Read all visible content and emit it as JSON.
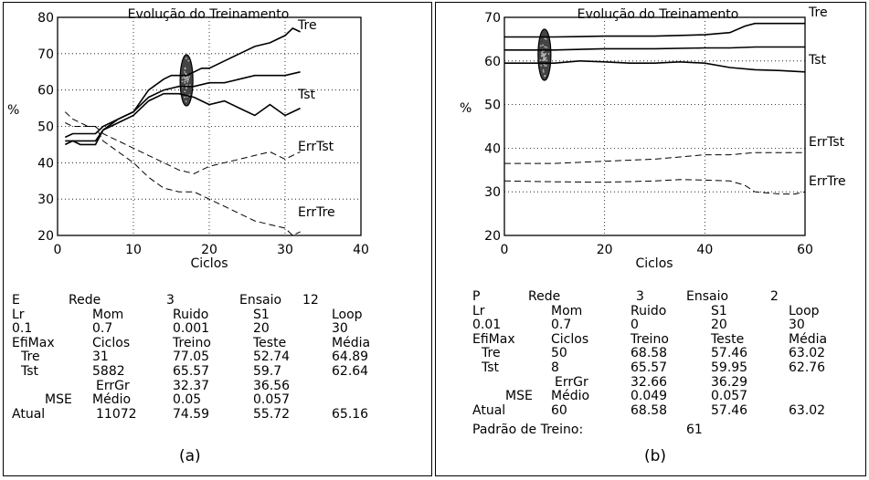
{
  "chart_data": [
    {
      "type": "line",
      "title": "Evolução do Treinamento",
      "xlabel": "Ciclos",
      "ylabel": "%",
      "xlim": [
        0,
        40
      ],
      "ylim": [
        20,
        80
      ],
      "xticks": [
        "0",
        "10",
        "20",
        "30",
        "40"
      ],
      "yticks": [
        "20",
        "30",
        "40",
        "50",
        "60",
        "70",
        "80"
      ],
      "grid": "dotted",
      "highlight_x": 17,
      "series": [
        {
          "name": "Tre",
          "dash": "solid",
          "x": [
            1,
            2,
            3,
            4,
            5,
            6,
            8,
            10,
            12,
            14,
            15,
            17,
            18,
            19,
            20,
            22,
            24,
            26,
            28,
            30,
            31,
            32
          ],
          "y": [
            47,
            48,
            48,
            48,
            48,
            50,
            52,
            54,
            60,
            63,
            64,
            64,
            65,
            66,
            66,
            68,
            70,
            72,
            73,
            75,
            77,
            76
          ]
        },
        {
          "name": "",
          "dash": "solid",
          "x": [
            1,
            2,
            3,
            4,
            5,
            6,
            8,
            10,
            12,
            14,
            16,
            18,
            20,
            22,
            24,
            26,
            28,
            30,
            32
          ],
          "y": [
            46,
            46,
            46,
            46,
            46,
            49,
            52,
            54,
            58,
            60,
            61,
            61,
            62,
            62,
            63,
            64,
            64,
            64,
            65
          ]
        },
        {
          "name": "Tst",
          "dash": "solid",
          "x": [
            1,
            2,
            3,
            4,
            5,
            6,
            8,
            10,
            12,
            14,
            16,
            18,
            20,
            22,
            24,
            26,
            28,
            30,
            31,
            32
          ],
          "y": [
            45,
            46,
            45,
            45,
            45,
            49,
            51,
            53,
            57,
            59,
            59,
            58,
            56,
            57,
            55,
            53,
            56,
            53,
            54,
            55
          ]
        },
        {
          "name": "ErrTst",
          "dash": "dashed",
          "x": [
            1,
            2,
            3,
            4,
            5,
            6,
            8,
            10,
            12,
            14,
            16,
            18,
            20,
            22,
            24,
            26,
            28,
            30,
            32
          ],
          "y": [
            51,
            50,
            50,
            50,
            50,
            48,
            46,
            44,
            42,
            40,
            38,
            37,
            39,
            40,
            41,
            42,
            43,
            41,
            43
          ]
        },
        {
          "name": "ErrTre",
          "dash": "dashed",
          "x": [
            1,
            2,
            3,
            4,
            5,
            6,
            8,
            10,
            12,
            14,
            16,
            18,
            20,
            22,
            24,
            26,
            28,
            30,
            31,
            32
          ],
          "y": [
            54,
            52,
            51,
            50,
            50,
            46,
            43,
            40,
            36,
            33,
            32,
            32,
            30,
            28,
            26,
            24,
            23,
            22,
            20,
            21
          ]
        }
      ]
    },
    {
      "type": "line",
      "title": "Evolução do Treinamento",
      "xlabel": "Ciclos",
      "ylabel": "%",
      "xlim": [
        0,
        60
      ],
      "ylim": [
        20,
        70
      ],
      "xticks": [
        "0",
        "20",
        "40",
        "60"
      ],
      "yticks": [
        "20",
        "30",
        "40",
        "50",
        "60",
        "70"
      ],
      "grid": "dotted",
      "highlight_x": 8,
      "series": [
        {
          "name": "Tre",
          "dash": "solid",
          "x": [
            0,
            10,
            20,
            30,
            40,
            45,
            48,
            50,
            55,
            60
          ],
          "y": [
            65.5,
            65.5,
            65.7,
            65.7,
            66,
            66.5,
            68,
            68.6,
            68.6,
            68.6
          ]
        },
        {
          "name": "Tst",
          "dash": "solid",
          "x": [
            0,
            10,
            20,
            30,
            40,
            45,
            50,
            55,
            60
          ],
          "y": [
            62.5,
            62.5,
            62.8,
            62.8,
            63,
            63,
            63.2,
            63.2,
            63.2
          ]
        },
        {
          "name": "",
          "dash": "solid",
          "x": [
            0,
            10,
            15,
            20,
            25,
            30,
            35,
            40,
            45,
            50,
            55,
            60
          ],
          "y": [
            59.5,
            59.5,
            60,
            59.8,
            59.5,
            59.5,
            59.8,
            59.5,
            58.5,
            58,
            57.8,
            57.5
          ]
        },
        {
          "name": "ErrTst",
          "dash": "dashed",
          "x": [
            0,
            10,
            20,
            30,
            35,
            40,
            45,
            50,
            55,
            60
          ],
          "y": [
            36.5,
            36.5,
            37,
            37.5,
            38,
            38.5,
            38.5,
            39,
            39,
            39
          ]
        },
        {
          "name": "ErrTre",
          "dash": "dashed",
          "x": [
            0,
            10,
            20,
            30,
            35,
            40,
            45,
            48,
            50,
            55,
            58,
            60
          ],
          "y": [
            32.5,
            32.3,
            32.2,
            32.5,
            32.8,
            32.7,
            32.5,
            31.5,
            30,
            29.5,
            29.5,
            30
          ]
        }
      ]
    }
  ],
  "panels": [
    {
      "caption": "(a)",
      "stats": [
        {
          "col": 0,
          "row": 0,
          "text": "E"
        },
        {
          "col": 1,
          "row": 0,
          "text": "Rede"
        },
        {
          "col": 2,
          "row": 0,
          "text": "3"
        },
        {
          "col": 3,
          "row": 0,
          "text": "Ensaio"
        },
        {
          "col": 4,
          "row": 0,
          "text": "12"
        },
        {
          "col": 0,
          "row": 1,
          "text": "Lr"
        },
        {
          "col": 5,
          "row": 1,
          "text": "Mom"
        },
        {
          "col": 6,
          "row": 1,
          "text": "Ruido"
        },
        {
          "col": 7,
          "row": 1,
          "text": "S1"
        },
        {
          "col": 8,
          "row": 1,
          "text": "Loop"
        },
        {
          "col": 0,
          "row": 2,
          "text": "0.1"
        },
        {
          "col": 5,
          "row": 2,
          "text": "0.7"
        },
        {
          "col": 6,
          "row": 2,
          "text": "0.001"
        },
        {
          "col": 7,
          "row": 2,
          "text": "20"
        },
        {
          "col": 8,
          "row": 2,
          "text": "30"
        },
        {
          "col": 0,
          "row": 3,
          "text": "EfiMax"
        },
        {
          "col": 5,
          "row": 3,
          "text": "Ciclos"
        },
        {
          "col": 6,
          "row": 3,
          "text": "Treino"
        },
        {
          "col": 7,
          "row": 3,
          "text": "Teste"
        },
        {
          "col": 8,
          "row": 3,
          "text": "Média"
        },
        {
          "col": 9,
          "row": 4,
          "text": "Tre"
        },
        {
          "col": 5,
          "row": 4,
          "text": "31"
        },
        {
          "col": 6,
          "row": 4,
          "text": "77.05"
        },
        {
          "col": 7,
          "row": 4,
          "text": "52.74"
        },
        {
          "col": 8,
          "row": 4,
          "text": "64.89"
        },
        {
          "col": 10,
          "row": 5,
          "text": "Tst"
        },
        {
          "col": 5,
          "row": 5,
          "text": "5882"
        },
        {
          "col": 6,
          "row": 5,
          "text": "65.57"
        },
        {
          "col": 7,
          "row": 5,
          "text": "59.7"
        },
        {
          "col": 8,
          "row": 5,
          "text": "62.64"
        },
        {
          "col": 11,
          "row": 6,
          "text": "ErrGr"
        },
        {
          "col": 6,
          "row": 6,
          "text": "32.37"
        },
        {
          "col": 7,
          "row": 6,
          "text": "36.56"
        },
        {
          "col": 12,
          "row": 7,
          "text": "MSE"
        },
        {
          "col": 5,
          "row": 7,
          "text": "Médio"
        },
        {
          "col": 6,
          "row": 7,
          "text": "0.05"
        },
        {
          "col": 7,
          "row": 7,
          "text": "0.057"
        },
        {
          "col": 0,
          "row": 8,
          "text": "Atual"
        },
        {
          "col": 13,
          "row": 8,
          "text": "11072"
        },
        {
          "col": 6,
          "row": 8,
          "text": "74.59"
        },
        {
          "col": 7,
          "row": 8,
          "text": "55.72"
        },
        {
          "col": 8,
          "row": 8,
          "text": "65.16"
        }
      ]
    },
    {
      "caption": "(b)",
      "stats": [
        {
          "col": 0,
          "row": 0,
          "text": "P"
        },
        {
          "col": 1,
          "row": 0,
          "text": "Rede"
        },
        {
          "col": 2,
          "row": 0,
          "text": "3"
        },
        {
          "col": 3,
          "row": 0,
          "text": "Ensaio"
        },
        {
          "col": 4,
          "row": 0,
          "text": "2"
        },
        {
          "col": 0,
          "row": 1,
          "text": "Lr"
        },
        {
          "col": 5,
          "row": 1,
          "text": "Mom"
        },
        {
          "col": 6,
          "row": 1,
          "text": "Ruido"
        },
        {
          "col": 7,
          "row": 1,
          "text": "S1"
        },
        {
          "col": 8,
          "row": 1,
          "text": "Loop"
        },
        {
          "col": 0,
          "row": 2,
          "text": "0.01"
        },
        {
          "col": 5,
          "row": 2,
          "text": "0.7"
        },
        {
          "col": 6,
          "row": 2,
          "text": "0"
        },
        {
          "col": 7,
          "row": 2,
          "text": "20"
        },
        {
          "col": 8,
          "row": 2,
          "text": "30"
        },
        {
          "col": 0,
          "row": 3,
          "text": "EfiMax"
        },
        {
          "col": 5,
          "row": 3,
          "text": "Ciclos"
        },
        {
          "col": 6,
          "row": 3,
          "text": "Treino"
        },
        {
          "col": 7,
          "row": 3,
          "text": "Teste"
        },
        {
          "col": 8,
          "row": 3,
          "text": "Média"
        },
        {
          "col": 9,
          "row": 4,
          "text": "Tre"
        },
        {
          "col": 5,
          "row": 4,
          "text": "50"
        },
        {
          "col": 6,
          "row": 4,
          "text": "68.58"
        },
        {
          "col": 7,
          "row": 4,
          "text": "57.46"
        },
        {
          "col": 8,
          "row": 4,
          "text": "63.02"
        },
        {
          "col": 10,
          "row": 5,
          "text": "Tst"
        },
        {
          "col": 5,
          "row": 5,
          "text": "8"
        },
        {
          "col": 6,
          "row": 5,
          "text": "65.57"
        },
        {
          "col": 7,
          "row": 5,
          "text": "59.95"
        },
        {
          "col": 8,
          "row": 5,
          "text": "62.76"
        },
        {
          "col": 11,
          "row": 6,
          "text": "ErrGr"
        },
        {
          "col": 6,
          "row": 6,
          "text": "32.66"
        },
        {
          "col": 7,
          "row": 6,
          "text": "36.29"
        },
        {
          "col": 12,
          "row": 7,
          "text": "MSE"
        },
        {
          "col": 5,
          "row": 7,
          "text": "Médio"
        },
        {
          "col": 6,
          "row": 7,
          "text": "0.049"
        },
        {
          "col": 7,
          "row": 7,
          "text": "0.057"
        },
        {
          "col": 0,
          "row": 8,
          "text": "Atual"
        },
        {
          "col": 5,
          "row": 8,
          "text": "60"
        },
        {
          "col": 6,
          "row": 8,
          "text": "68.58"
        },
        {
          "col": 7,
          "row": 8,
          "text": "57.46"
        },
        {
          "col": 8,
          "row": 8,
          "text": "63.02"
        },
        {
          "col": 14,
          "row": 9,
          "text": "Padrão de Treino:"
        },
        {
          "col": 15,
          "row": 9,
          "text": "61"
        }
      ]
    }
  ]
}
